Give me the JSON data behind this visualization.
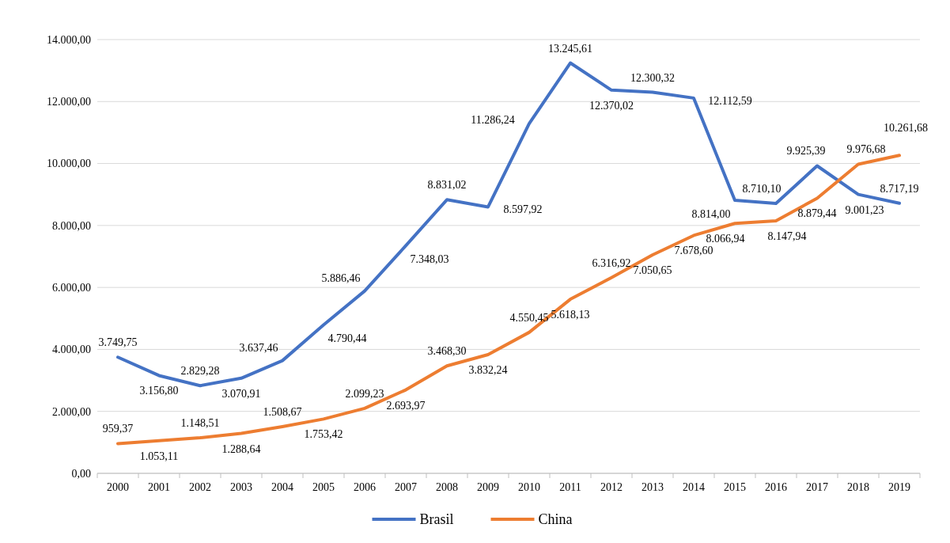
{
  "chart_data": {
    "type": "line",
    "categories": [
      "2000",
      "2001",
      "2002",
      "2003",
      "2004",
      "2005",
      "2006",
      "2007",
      "2008",
      "2009",
      "2010",
      "2011",
      "2012",
      "2013",
      "2014",
      "2015",
      "2016",
      "2017",
      "2018",
      "2019"
    ],
    "series": [
      {
        "name": "Brasil",
        "color": "#4472c4",
        "values": [
          3749.75,
          3156.8,
          2829.28,
          3070.91,
          3637.46,
          4790.44,
          5886.46,
          7348.03,
          8831.02,
          8597.92,
          11286.24,
          13245.61,
          12370.02,
          12300.32,
          12112.59,
          8814.0,
          8710.1,
          9925.39,
          9001.23,
          8717.19
        ],
        "value_labels": [
          "3.749,75",
          "3.156,80",
          "2.829,28",
          "3.070,91",
          "3.637,46",
          "4.790,44",
          "5.886,46",
          "7.348,03",
          "8.831,02",
          "8.597,92",
          "11.286,24",
          "13.245,61",
          "12.370,02",
          "12.300,32",
          "12.112,59",
          "8.814,00",
          "8.710,10",
          "9.925,39",
          "9.001,23",
          "8.717,19"
        ]
      },
      {
        "name": "China",
        "color": "#ed7d31",
        "values": [
          959.37,
          1053.11,
          1148.51,
          1288.64,
          1508.67,
          1753.42,
          2099.23,
          2693.97,
          3468.3,
          3832.24,
          4550.45,
          5618.13,
          6316.92,
          7050.65,
          7678.6,
          8066.94,
          8147.94,
          8879.44,
          9976.68,
          10261.68
        ],
        "value_labels": [
          "959,37",
          "1.053,11",
          "1.148,51",
          "1.288,64",
          "1.508,67",
          "1.753,42",
          "2.099,23",
          "2.693,97",
          "3.468,30",
          "3.832,24",
          "4.550,45",
          "5.618,13",
          "6.316,92",
          "7.050,65",
          "7.678,60",
          "8.066,94",
          "8.147,94",
          "8.879,44",
          "9.976,68",
          "10.261,68"
        ]
      }
    ],
    "ylim": [
      0,
      14000
    ],
    "yticks": [
      {
        "value": 0,
        "label": "0,00"
      },
      {
        "value": 2000,
        "label": "2.000,00"
      },
      {
        "value": 4000,
        "label": "4.000,00"
      },
      {
        "value": 6000,
        "label": "6.000,00"
      },
      {
        "value": 8000,
        "label": "8.000,00"
      },
      {
        "value": 10000,
        "label": "10.000,00"
      },
      {
        "value": 12000,
        "label": "12.000,00"
      },
      {
        "value": 14000,
        "label": "14.000,00"
      }
    ],
    "grid": "y",
    "legend": "bottom",
    "marker": "none",
    "line_style": "solid"
  }
}
